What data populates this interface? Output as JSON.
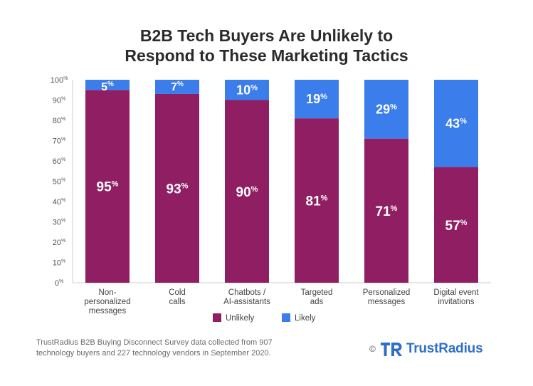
{
  "header": {
    "title_line1": "B2B Tech Buyers Are Unlikely to",
    "title_line2": "Respond to These Marketing Tactics"
  },
  "chart_data": {
    "type": "bar",
    "stacked": true,
    "categories": [
      [
        "Non-",
        "personalized",
        "messages"
      ],
      [
        "Cold",
        "calls"
      ],
      [
        "Chatbots /",
        "AI-assistants"
      ],
      [
        "Targeted",
        "ads"
      ],
      [
        "Personalized",
        "messages"
      ],
      [
        "Digital event",
        "invitations"
      ]
    ],
    "series": [
      {
        "name": "Unlikely",
        "color": "#901e63",
        "values": [
          95,
          93,
          90,
          81,
          71,
          57
        ],
        "labels": [
          "95%",
          "93%",
          "90%",
          "81%",
          "71%",
          "57%"
        ]
      },
      {
        "name": "Likely",
        "color": "#3b7deb",
        "values": [
          5,
          7,
          10,
          19,
          29,
          43
        ],
        "labels": [
          "5%",
          "7%",
          "10%",
          "19%",
          "29%",
          "43%"
        ]
      }
    ],
    "y_ticks": [
      "0%",
      "10%",
      "20%",
      "30%",
      "40%",
      "50%",
      "60%",
      "70%",
      "80%",
      "90%",
      "100%"
    ],
    "ylim": [
      0,
      100
    ],
    "legend_position": "bottom-center",
    "grid": false
  },
  "footer": {
    "source_line1": "TrustRadius B2B Buying Disconnect Survey data collected from 907",
    "source_line2": "technology buyers and 227 technology vendors in September 2020.",
    "copyright": "©",
    "brand": "TrustRadius",
    "logo_icon": "trustradius-tr-logo-icon",
    "brand_color": "#2f6fc9"
  }
}
